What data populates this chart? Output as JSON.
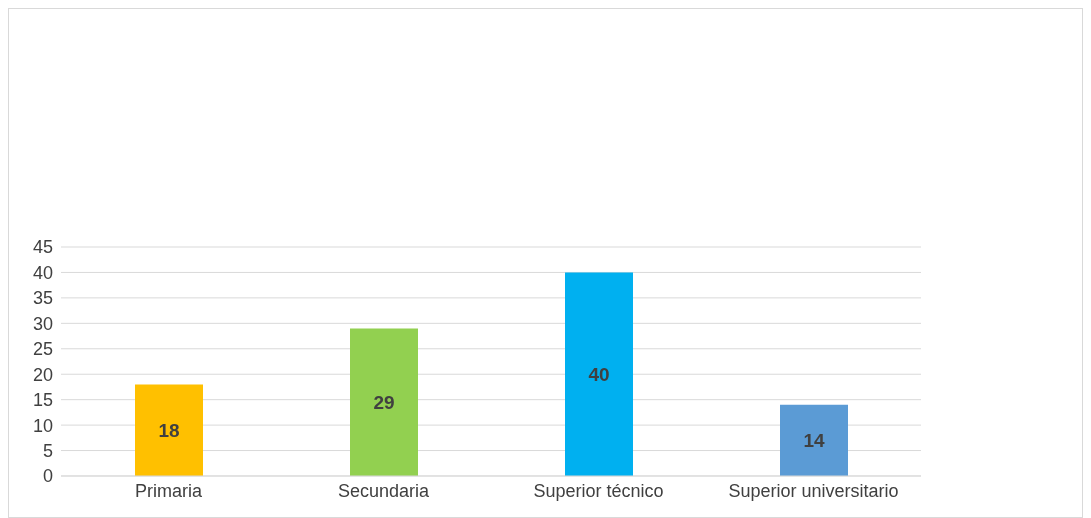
{
  "chart_data": {
    "type": "bar",
    "categories": [
      "Primaria",
      "Secundaria",
      "Superior técnico",
      "Superior universitario"
    ],
    "values": [
      18,
      29,
      40,
      14
    ],
    "colors": [
      "#ffc000",
      "#92d050",
      "#00b0f0",
      "#5b9bd5"
    ],
    "ylim": [
      0,
      45
    ],
    "yticks": [
      0,
      5,
      10,
      15,
      20,
      25,
      30,
      35,
      40,
      45
    ],
    "grid": "y",
    "data_labels": true,
    "legend": false
  }
}
